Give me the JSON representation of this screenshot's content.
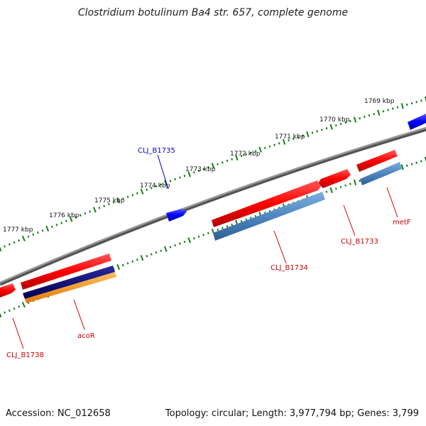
{
  "title": "Clostridium botulinum Ba4 str. 657, complete genome",
  "footer": {
    "accession": "Accession: NC_012658",
    "topology": "Topology: circular; Length: 3,977,794 bp; Genes: 3,799"
  },
  "scale_labels": [
    "1769 kbp",
    "1770 kbp",
    "1771 kbp",
    "1772 kbp",
    "1773 kbp",
    "1774 kbp",
    "1775 kbp",
    "1776 kbp",
    "1777 kbp"
  ],
  "gene_labels": [
    {
      "text": "CLJ_B1735",
      "color": "#0000cc"
    },
    {
      "text": "CLJ_B1734",
      "color": "#cc0000"
    },
    {
      "text": "CLJ_B1733",
      "color": "#cc0000"
    },
    {
      "text": "metF",
      "color": "#cc0000"
    },
    {
      "text": "acoR",
      "color": "#cc0000"
    },
    {
      "text": "CLJ_B1738",
      "color": "#cc0000"
    }
  ],
  "colors": {
    "backbone": "#808080",
    "gene_red": "#ff1a1a",
    "gene_blue": "#1a1aff",
    "steelblue": "#4f86c0",
    "navy": "#0a0a7a",
    "orange": "#ff9a1a",
    "tick_green": "#1a7a1a"
  }
}
